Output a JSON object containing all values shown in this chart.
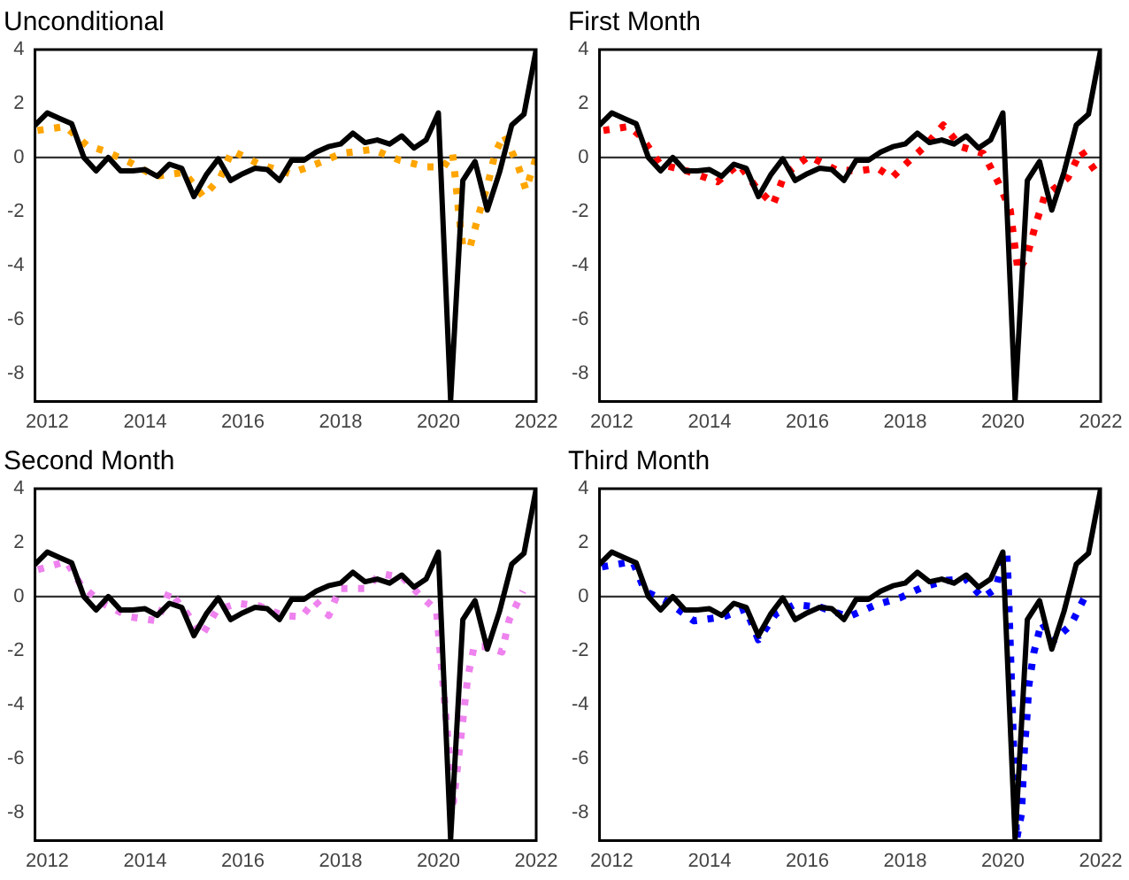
{
  "chart_data": [
    {
      "type": "line",
      "title": "Unconditional",
      "x": [
        2011.75,
        2012,
        2012.25,
        2012.5,
        2012.75,
        2013,
        2013.25,
        2013.5,
        2013.75,
        2014,
        2014.25,
        2014.5,
        2014.75,
        2015,
        2015.25,
        2015.5,
        2015.75,
        2016,
        2016.25,
        2016.5,
        2016.75,
        2017,
        2017.25,
        2017.5,
        2017.75,
        2018,
        2018.25,
        2018.5,
        2018.75,
        2019,
        2019.25,
        2019.5,
        2019.75,
        2020,
        2020.25,
        2020.5,
        2020.75,
        2021,
        2021.25,
        2021.5,
        2021.75,
        2022
      ],
      "series": [
        {
          "color": "#000000",
          "line_style": "solid",
          "values": [
            1.2,
            1.65,
            1.45,
            1.25,
            0.0,
            -0.5,
            0.0,
            -0.5,
            -0.5,
            -0.45,
            -0.7,
            -0.25,
            -0.4,
            -1.45,
            -0.65,
            -0.05,
            -0.85,
            -0.6,
            -0.4,
            -0.45,
            -0.85,
            -0.1,
            -0.1,
            0.2,
            0.4,
            0.5,
            0.9,
            0.55,
            0.65,
            0.5,
            0.8,
            0.35,
            0.65,
            1.65,
            -9.0,
            -0.85,
            -0.15,
            -1.95,
            -0.55,
            1.2,
            1.6,
            4.0
          ]
        },
        {
          "color": "#ffa500",
          "line_style": "dotted",
          "x": [
            2011.8,
            2012.37,
            2012.81,
            2013.16,
            2013.66,
            2014.21,
            2014.8,
            2015.19,
            2015.54,
            2015.78,
            2016.34,
            2016.97,
            2017.49,
            2018.02,
            2018.66,
            2019.2,
            2019.76,
            2020.11,
            2020.29,
            2020.36,
            2020.42,
            2020.5,
            2020.65,
            2020.82,
            2021.01,
            2021.16,
            2021.34,
            2021.62,
            2021.79,
            2022
          ],
          "values": [
            1.0,
            1.15,
            0.45,
            0.25,
            -0.15,
            -0.7,
            -0.55,
            -1.45,
            -0.75,
            0.25,
            -0.25,
            -0.6,
            -0.25,
            0.15,
            0.3,
            -0.1,
            -0.35,
            -0.35,
            0.15,
            -1.0,
            -2.15,
            -3.3,
            -3.3,
            -2.15,
            -1.0,
            0.15,
            0.85,
            -0.25,
            -1.2,
            0.0
          ]
        }
      ],
      "xlim": [
        2011.75,
        2022
      ],
      "xticks": [
        2012,
        2014,
        2016,
        2018,
        2020,
        2022
      ],
      "ylim": [
        -9.05,
        4
      ],
      "yticks": [
        -8,
        -6,
        -4,
        -2,
        0,
        2,
        4
      ],
      "ref_lines": [
        {
          "axis": "y",
          "value": 0,
          "color": "#333333"
        }
      ]
    },
    {
      "type": "line",
      "title": "First Month",
      "x": [
        2011.75,
        2012,
        2012.25,
        2012.5,
        2012.75,
        2013,
        2013.25,
        2013.5,
        2013.75,
        2014,
        2014.25,
        2014.5,
        2014.75,
        2015,
        2015.25,
        2015.5,
        2015.75,
        2016,
        2016.25,
        2016.5,
        2016.75,
        2017,
        2017.25,
        2017.5,
        2017.75,
        2018,
        2018.25,
        2018.5,
        2018.75,
        2019,
        2019.25,
        2019.5,
        2019.75,
        2020,
        2020.25,
        2020.5,
        2020.75,
        2021,
        2021.25,
        2021.5,
        2021.75,
        2022
      ],
      "series": [
        {
          "color": "#000000",
          "line_style": "solid",
          "values": [
            1.2,
            1.65,
            1.45,
            1.25,
            0.0,
            -0.5,
            0.0,
            -0.5,
            -0.5,
            -0.45,
            -0.7,
            -0.25,
            -0.4,
            -1.45,
            -0.65,
            -0.05,
            -0.85,
            -0.6,
            -0.4,
            -0.45,
            -0.85,
            -0.1,
            -0.1,
            0.2,
            0.4,
            0.5,
            0.9,
            0.55,
            0.65,
            0.5,
            0.8,
            0.35,
            0.65,
            1.65,
            -9.0,
            -0.85,
            -0.15,
            -1.95,
            -0.55,
            1.2,
            1.6,
            4.0
          ]
        },
        {
          "color": "#ff0000",
          "line_style": "dotted",
          "x": [
            2011.83,
            2012.36,
            2012.61,
            2012.99,
            2013.54,
            2014.16,
            2014.6,
            2014.95,
            2015.3,
            2015.53,
            2016.03,
            2016.58,
            2017.03,
            2017.44,
            2017.73,
            2017.98,
            2018.4,
            2018.78,
            2019.14,
            2019.6,
            2019.9,
            2020.15,
            2020.23,
            2020.31,
            2020.49,
            2020.66,
            2020.85,
            2021.33,
            2021.6,
            2021.89
          ],
          "values": [
            1.0,
            1.15,
            0.75,
            -0.25,
            -0.5,
            -0.9,
            -0.25,
            -1.1,
            -1.75,
            -0.65,
            0.05,
            -0.45,
            -0.5,
            -0.4,
            -0.75,
            -0.3,
            0.4,
            1.2,
            0.4,
            0.15,
            -0.9,
            -1.95,
            -3.1,
            -4.2,
            -3.7,
            -2.55,
            -1.45,
            -0.75,
            0.25,
            -0.5
          ]
        }
      ],
      "xlim": [
        2011.75,
        2022
      ],
      "xticks": [
        2012,
        2014,
        2016,
        2018,
        2020,
        2022
      ],
      "ylim": [
        -9.05,
        4
      ],
      "yticks": [
        -8,
        -6,
        -4,
        -2,
        0,
        2,
        4
      ],
      "ref_lines": [
        {
          "axis": "y",
          "value": 0,
          "color": "#333333"
        }
      ]
    },
    {
      "type": "line",
      "title": "Second Month",
      "x": [
        2011.75,
        2012,
        2012.25,
        2012.5,
        2012.75,
        2013,
        2013.25,
        2013.5,
        2013.75,
        2014,
        2014.25,
        2014.5,
        2014.75,
        2015,
        2015.25,
        2015.5,
        2015.75,
        2016,
        2016.25,
        2016.5,
        2016.75,
        2017,
        2017.25,
        2017.5,
        2017.75,
        2018,
        2018.25,
        2018.5,
        2018.75,
        2019,
        2019.25,
        2019.5,
        2019.75,
        2020,
        2020.25,
        2020.5,
        2020.75,
        2021,
        2021.25,
        2021.5,
        2021.75,
        2022
      ],
      "series": [
        {
          "color": "#000000",
          "line_style": "solid",
          "values": [
            1.2,
            1.65,
            1.45,
            1.25,
            0.0,
            -0.5,
            0.0,
            -0.5,
            -0.5,
            -0.45,
            -0.7,
            -0.25,
            -0.4,
            -1.45,
            -0.65,
            -0.05,
            -0.85,
            -0.6,
            -0.4,
            -0.45,
            -0.85,
            -0.1,
            -0.1,
            0.2,
            0.4,
            0.5,
            0.9,
            0.55,
            0.65,
            0.5,
            0.8,
            0.35,
            0.65,
            1.65,
            -9.0,
            -0.85,
            -0.15,
            -1.95,
            -0.55,
            1.2,
            1.6,
            4.0
          ]
        },
        {
          "color": "#ee82ee",
          "line_style": "dotted",
          "x": [
            2011.81,
            2012.39,
            2012.7,
            2013.13,
            2013.68,
            2014.25,
            2014.5,
            2014.87,
            2015.16,
            2015.47,
            2015.89,
            2016.34,
            2016.82,
            2017.2,
            2017.47,
            2017.76,
            2017.98,
            2018.5,
            2018.83,
            2019.27,
            2019.65,
            2019.96,
            2020.31,
            2020.6,
            2020.73,
            2020.92,
            2021.3,
            2021.45,
            2021.73
          ],
          "values": [
            1.0,
            1.3,
            0.4,
            -0.25,
            -0.75,
            -0.9,
            0.2,
            -0.65,
            -1.45,
            -0.5,
            -0.25,
            -0.35,
            -0.7,
            -0.75,
            -0.15,
            -0.7,
            0.3,
            0.3,
            0.85,
            0.7,
            0.0,
            -0.5,
            -7.6,
            -3.0,
            -1.85,
            -1.85,
            -2.05,
            -0.85,
            0.2
          ]
        }
      ],
      "xlim": [
        2011.75,
        2022
      ],
      "xticks": [
        2012,
        2014,
        2016,
        2018,
        2020,
        2022
      ],
      "ylim": [
        -9.05,
        4
      ],
      "yticks": [
        -8,
        -6,
        -4,
        -2,
        0,
        2,
        4
      ],
      "ref_lines": [
        {
          "axis": "y",
          "value": 0,
          "color": "#333333"
        }
      ]
    },
    {
      "type": "line",
      "title": "Third Month",
      "x": [
        2011.75,
        2012,
        2012.25,
        2012.5,
        2012.75,
        2013,
        2013.25,
        2013.5,
        2013.75,
        2014,
        2014.25,
        2014.5,
        2014.75,
        2015,
        2015.25,
        2015.5,
        2015.75,
        2016,
        2016.25,
        2016.5,
        2016.75,
        2017,
        2017.25,
        2017.5,
        2017.75,
        2018,
        2018.25,
        2018.5,
        2018.75,
        2019,
        2019.25,
        2019.5,
        2019.75,
        2020,
        2020.25,
        2020.5,
        2020.75,
        2021,
        2021.25,
        2021.5,
        2021.75,
        2022
      ],
      "series": [
        {
          "color": "#000000",
          "line_style": "solid",
          "values": [
            1.2,
            1.65,
            1.45,
            1.25,
            0.0,
            -0.5,
            0.0,
            -0.5,
            -0.5,
            -0.45,
            -0.7,
            -0.25,
            -0.4,
            -1.45,
            -0.65,
            -0.05,
            -0.85,
            -0.6,
            -0.4,
            -0.45,
            -0.85,
            -0.1,
            -0.1,
            0.2,
            0.4,
            0.5,
            0.9,
            0.55,
            0.65,
            0.5,
            0.8,
            0.35,
            0.65,
            1.65,
            -9.0,
            -0.85,
            -0.15,
            -1.95,
            -0.55,
            1.2,
            1.6,
            4.0
          ]
        },
        {
          "color": "#0000ff",
          "line_style": "dotted",
          "x": [
            2011.8,
            2012.43,
            2012.68,
            2013.15,
            2013.68,
            2014.28,
            2014.74,
            2015.0,
            2015.35,
            2015.74,
            2016.28,
            2016.84,
            2017.41,
            2017.89,
            2018.36,
            2018.85,
            2019.24,
            2019.58,
            2019.86,
            2020.01,
            2020.08,
            2020.11,
            2020.28,
            2020.38,
            2020.44,
            2020.49,
            2020.53,
            2020.63,
            2020.79,
            2021.03,
            2021.39,
            2021.68
          ],
          "values": [
            1.1,
            1.3,
            0.2,
            -0.2,
            -0.9,
            -0.75,
            -0.45,
            -1.6,
            -0.65,
            -0.3,
            -0.4,
            -0.75,
            -0.3,
            -0.05,
            0.35,
            0.6,
            0.65,
            -0.05,
            0.3,
            1.5,
            1.6,
            0.45,
            -9.0,
            -8.05,
            -5.65,
            -4.5,
            -3.3,
            -2.1,
            -0.95,
            -1.65,
            -1.05,
            0.0
          ]
        }
      ],
      "xlim": [
        2011.75,
        2022
      ],
      "xticks": [
        2012,
        2014,
        2016,
        2018,
        2020,
        2022
      ],
      "ylim": [
        -9.05,
        4
      ],
      "yticks": [
        -8,
        -6,
        -4,
        -2,
        0,
        2,
        4
      ],
      "ref_lines": [
        {
          "axis": "y",
          "value": 0,
          "color": "#333333"
        }
      ]
    }
  ]
}
